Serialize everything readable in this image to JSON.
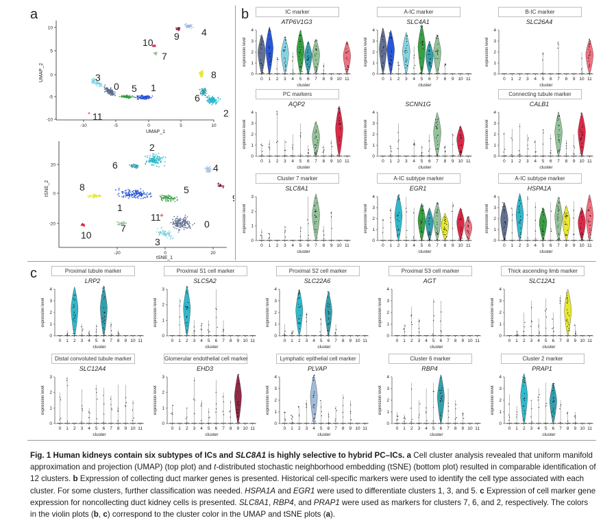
{
  "panels": {
    "a": "a",
    "b": "b",
    "c": "c"
  },
  "umap": {
    "ylabel": "UMAP_2",
    "xlabel": "UMAP_1",
    "yticks": [
      "10",
      "5",
      "0",
      "-5",
      "-10"
    ],
    "xticks": [
      "-10",
      "-5",
      "0",
      "5",
      "10"
    ],
    "clusters": [
      "0",
      "1",
      "2",
      "3",
      "4",
      "5",
      "6",
      "7",
      "8",
      "9",
      "10",
      "11"
    ]
  },
  "tsne": {
    "ylabel": "tSNE_2",
    "xlabel": "tSNE_1",
    "yticks": [
      "20",
      "0",
      "-20"
    ],
    "xticks": [
      "-20",
      "0",
      "20"
    ],
    "clusters": [
      "0",
      "1",
      "2",
      "3",
      "4",
      "5",
      "6",
      "7",
      "8",
      "9",
      "10",
      "11"
    ]
  },
  "violin": {
    "ylabel": "expression level",
    "xlabel": "cluster",
    "ticks": [
      "0",
      "1",
      "2",
      "3",
      "4",
      "5",
      "6",
      "7",
      "8",
      "9",
      "10",
      "11"
    ],
    "yticks": [
      "0",
      "1",
      "2",
      "3",
      "4"
    ]
  },
  "panel_b": [
    {
      "marker": "IC marker",
      "gene": "ATP6V1G3"
    },
    {
      "marker": "A-IC marker",
      "gene": "SLC4A1"
    },
    {
      "marker": "B-IC marker",
      "gene": "SLC26A4"
    },
    {
      "marker": "PC markers",
      "gene": "AQP2"
    },
    {
      "marker": "",
      "gene": "SCNN1G"
    },
    {
      "marker": "Connecting tubule marker",
      "gene": "CALB1"
    },
    {
      "marker": "Cluster 7 marker",
      "gene": "SLC8A1"
    },
    {
      "marker": "A-IC subtype marker",
      "gene": "EGR1"
    },
    {
      "marker": "A-IC subtype  marker",
      "gene": "HSPA1A"
    }
  ],
  "panel_c": [
    {
      "marker": "Proximal tubule marker",
      "gene": "LRP2"
    },
    {
      "marker": "Proximal S1 cell marker",
      "gene": "SLC5A2"
    },
    {
      "marker": "Proximal S2 cell marker",
      "gene": "SLC22A6"
    },
    {
      "marker": "Proximal S3 cell marker",
      "gene": "AGT"
    },
    {
      "marker": "Thick ascending limb marker",
      "gene": "SLC12A1"
    },
    {
      "marker": "Distal convoluted tubule marker",
      "gene": "SLC12A4"
    },
    {
      "marker": "Glomerular endothelial cell marker",
      "gene": "EHD3"
    },
    {
      "marker": "Lymphatic  epithelial cell marker",
      "gene": "PLVAP"
    },
    {
      "marker": "Cluster 6 marker",
      "gene": "RBP4"
    },
    {
      "marker": "Cluster 2 marker",
      "gene": "PRAP1"
    }
  ],
  "caption": {
    "fig": "Fig. 1",
    "title_a": "Human kidneys contain six subtypes of ICs and ",
    "title_gene": "SLC8A1",
    "title_b": " is highly selective to hybrid PC–ICs.",
    "a_label": "a",
    "a_text": " Cell cluster analysis revealed that uniform manifold approximation and projection (UMAP) (top plot) and ",
    "a_t": "t",
    "a_text2": "-distributed stochastic neighborhood embedding (tSNE) (bottom plot) resulted in comparable identification of 12 clusters.",
    "b_label": "b",
    "b_text": " Expression of collecting duct marker genes is presented. Historical cell-specific markers were used to identify the cell type associated with each cluster. For some clusters, further classification was needed. ",
    "b_g1": "HSPA1A",
    "b_and": " and ",
    "b_g2": "EGR1",
    "b_text2": " were used to differentiate clusters 1, 3, and 5.",
    "c_label": "c",
    "c_text": " Expression of cell marker gene expression for noncollecting duct kidney cells is presented. ",
    "c_g1": "SLC8A1",
    "c_sep1": ", ",
    "c_g2": "RBP4",
    "c_sep2": ", and ",
    "c_g3": "PRAP1",
    "c_text2": " were used as markers for clusters 7, 6, and 2, respectively. The colors in the violin plots (",
    "c_b": "b",
    "c_comma": ", ",
    "c_c": "c",
    "c_text3": ") correspond to the cluster color in the UMAP and tSNE plots (",
    "c_a": "a",
    "c_end": ")."
  },
  "colors": {
    "c0": "#5a6a8c",
    "c1": "#1f4fd6",
    "c2": "#26b5c9",
    "c3": "#7fd1e0",
    "c4": "#9bb8da",
    "c5": "#2f9a3a",
    "c6": "#2a9aa8",
    "c7": "#8fbf95",
    "c8": "#e6e62a",
    "c9": "#8a1f3c",
    "c10": "#d81f3f",
    "c11": "#f06a7a"
  }
}
